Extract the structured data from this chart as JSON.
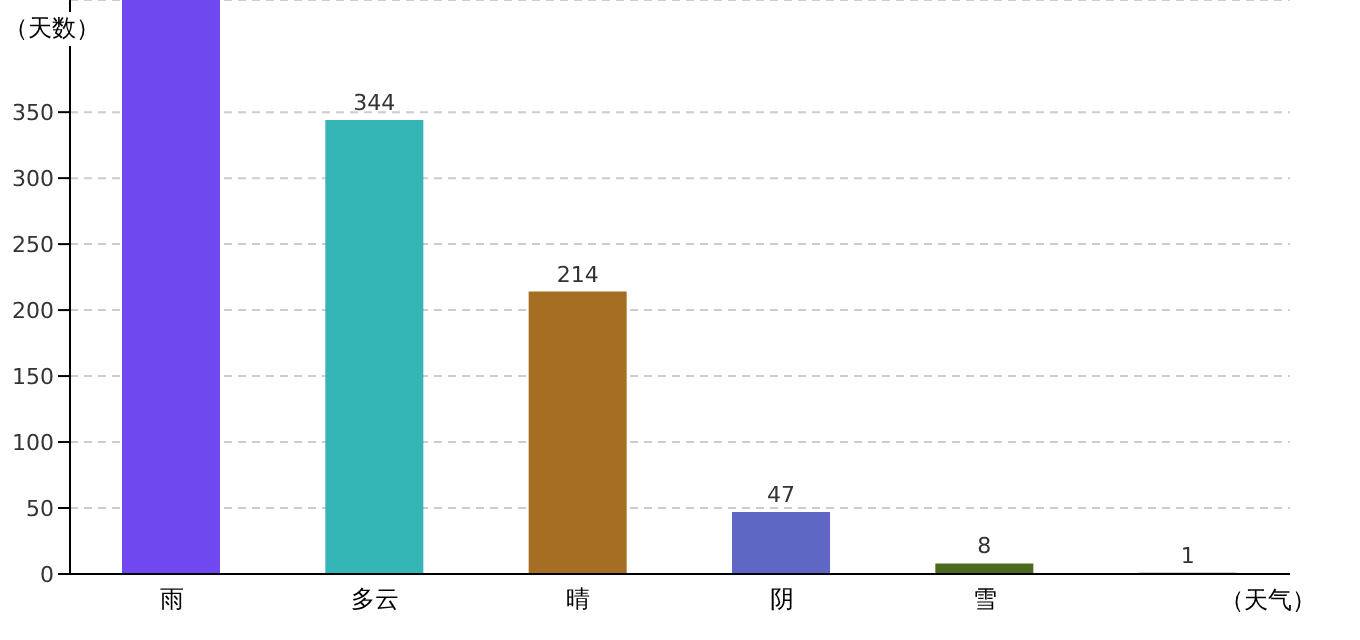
{
  "chart_data": {
    "type": "bar",
    "ylabel": "（天数）",
    "xlabel": "（天气）",
    "categories": [
      "雨",
      "多云",
      "晴",
      "阴",
      "雪",
      null
    ],
    "values": [
      435,
      344,
      214,
      47,
      8,
      1
    ],
    "value_labels": [
      null,
      "344",
      "214",
      "47",
      "8",
      "1"
    ],
    "colors": [
      "#7048f0",
      "#35b5b5",
      "#a66e22",
      "#5e68c4",
      "#4a6b1f",
      "#8b3a1a"
    ],
    "ylim": [
      0,
      435
    ],
    "yticks": [
      0,
      50,
      100,
      150,
      200,
      250,
      300,
      350
    ],
    "grid": "y",
    "legend": false
  }
}
